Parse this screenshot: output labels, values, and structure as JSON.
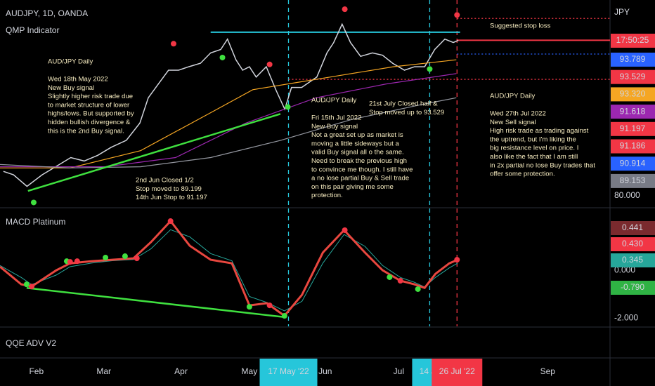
{
  "chart_data": {
    "type": "line",
    "title": "AUDJPY, 1D, OANDA",
    "indicator": "QMP Indicator",
    "currency": "JPY",
    "countdown": "17:50:25",
    "xlim": [
      0,
      181
    ],
    "xticks": [
      {
        "value": 10.8,
        "label": "Feb"
      },
      {
        "value": 30.8,
        "label": "Mar"
      },
      {
        "value": 53.7,
        "label": "Apr"
      },
      {
        "value": 74,
        "label": "May"
      },
      {
        "value": 96.5,
        "label": "Jun"
      },
      {
        "value": 118.3,
        "label": "Jul"
      },
      {
        "value": 162.5,
        "label": "Sep"
      }
    ],
    "highlights": [
      {
        "value": 85.6,
        "label": "17 May '22",
        "color": "#26c6da"
      },
      {
        "value": 127.5,
        "label": "14 Ju",
        "color": "#26c6da"
      },
      {
        "value": 135.6,
        "label": "26 Jul '22",
        "color": "#f23645"
      }
    ],
    "ylim": [
      79,
      97
    ],
    "yticks": [
      {
        "value": 80,
        "label": "80.000"
      }
    ],
    "price_labels": [
      {
        "label": "93.789",
        "color": "#2962ff",
        "text": "#ffffff"
      },
      {
        "label": "93.529",
        "color": "#f23645",
        "text": "#ffffff"
      },
      {
        "label": "93.320",
        "color": "#f5a623",
        "text": "#131722"
      },
      {
        "label": "91.618",
        "color": "#9c27b0",
        "text": "#ffffff"
      },
      {
        "label": "91.197",
        "color": "#f23645",
        "text": "#ffffff"
      },
      {
        "label": "91.186",
        "color": "#f23645",
        "text": "#ffffff"
      },
      {
        "label": "90.914",
        "color": "#2962ff",
        "text": "#ffffff"
      },
      {
        "label": "89.153",
        "color": "#787b86",
        "text": "#ffffff"
      }
    ],
    "series": [
      {
        "color": "#d1d4dc",
        "x": [
          1,
          4,
          8,
          12.5,
          16.5,
          21,
          25,
          29,
          33,
          37.5,
          41.5,
          44,
          47,
          50,
          53,
          56,
          59.5,
          62.5,
          65.5,
          67.5,
          70,
          72,
          74,
          76,
          79,
          82,
          84.5,
          86.5,
          89.5,
          94,
          97,
          99,
          101.5,
          104,
          107,
          110.5,
          113.5,
          116.5,
          120,
          123,
          126,
          129,
          132,
          134.5,
          136
        ],
        "values": [
          82.1,
          81.8,
          80.8,
          81.8,
          82.5,
          83.3,
          83.0,
          83.5,
          84.2,
          84.8,
          86.3,
          88.5,
          89.7,
          90.9,
          90.9,
          91.2,
          91.5,
          92.4,
          92.7,
          93.6,
          91.8,
          90.9,
          91.2,
          90.3,
          91.2,
          89.1,
          87.5,
          89.4,
          89.4,
          90.3,
          92.4,
          93.3,
          94.9,
          93.3,
          92.1,
          92.4,
          92.2,
          91.5,
          90.9,
          91.2,
          91.2,
          92.7,
          93.6,
          93.3,
          93.5
        ]
      },
      {
        "color": "#f5a623",
        "x": [
          0,
          20.8,
          41.7,
          62.5,
          75,
          87.5,
          100,
          116.7,
          135.4
        ],
        "values": [
          82.4,
          82.4,
          83.9,
          87.2,
          89.2,
          89.8,
          90.4,
          91.2,
          91.8
        ]
      },
      {
        "color": "#9c27b0",
        "x": [
          0,
          31.3,
          52.1,
          72.9,
          93.8,
          114.6,
          135.4
        ],
        "values": [
          82.5,
          82.5,
          83.3,
          86.3,
          88.5,
          89.7,
          90.6
        ]
      },
      {
        "color": "#9598a1",
        "x": [
          0,
          20.8,
          41.7,
          62.5,
          83.3,
          104.2,
          125,
          135.4
        ],
        "values": [
          82.7,
          82.4,
          82.5,
          83.3,
          84.8,
          86.6,
          87.9,
          88.5
        ]
      }
    ],
    "trendline": {
      "color": "#3fe03f",
      "x": [
        8.3,
        83.2
      ],
      "values": [
        80.4,
        87.1
      ]
    },
    "levels": [
      {
        "value": 94.2,
        "from": 62.5,
        "to": 136.5,
        "color": "#26c6da",
        "style": "solid"
      },
      {
        "value": 93.5,
        "from": 135.6,
        "to": 181,
        "color": "#f23645",
        "style": "solid"
      },
      {
        "value": 95.4,
        "from": 135.6,
        "to": 181,
        "color": "#f23645",
        "style": "dotted"
      },
      {
        "value": 92.3,
        "from": 135.6,
        "to": 181,
        "color": "#2962ff",
        "style": "dotted"
      },
      {
        "value": 90.1,
        "from": 85.6,
        "to": 181,
        "color": "#f23645",
        "style": "dotted"
      }
    ],
    "vlines": [
      {
        "value": 85.6,
        "color": "#26c6da"
      },
      {
        "value": 127.5,
        "color": "#26c6da"
      },
      {
        "value": 135.6,
        "color": "#f23645"
      }
    ],
    "buy_signals": {
      "color": "#3fe03f",
      "x": [
        10,
        66,
        85.4,
        127.5
      ],
      "values": [
        79.4,
        92.0,
        87.7,
        91.0
      ]
    },
    "sell_signals": {
      "color": "#f23645",
      "x": [
        51.5,
        80,
        102.3,
        135.6
      ],
      "values": [
        93.2,
        91.4,
        96.2,
        95.7
      ]
    },
    "annotations": [
      {
        "heading": "AUD/JPY Daily",
        "lines": [
          "Wed 18th May 2022",
          "New Buy signal",
          "Slightly higher risk trade due",
          "to market structure of lower",
          "highs/lows. But supported by",
          "hidden bullish divergence &",
          "this is the 2nd Buy signal."
        ]
      },
      {
        "lines": [
          "2nd Jun Closed 1/2",
          "Stop moved to 89.199",
          "14th Jun Stop to 91.197"
        ]
      },
      {
        "heading": "AUD/JPY Daily",
        "lines": [
          "Fri 15th Jul 2022",
          "New Buy signal",
          "Not a great set up as market is",
          "moving a little sideways but a",
          "valid Buy signal all o the same.",
          "Need to break the previous high",
          "to convince me though. I still have",
          "a no lose partial Buy & Sell trade",
          "on this pair giving me some",
          "protection."
        ]
      },
      {
        "lines": [
          "21st July Closed half &",
          "Stop moved up to 93.529"
        ]
      },
      {
        "heading": "AUD/JPY Daily",
        "lines": [
          "Wed 27th Jul 2022",
          "New Sell signal",
          "High risk trade as trading against",
          "the uptrend, but I'm liking the",
          "big resistance level on price. I",
          "also like the fact that I am still",
          "in 2x partial no lose Buy trades that",
          "offer some protection."
        ]
      },
      {
        "lines": [
          "Suggested stop loss"
        ]
      }
    ],
    "macd": {
      "title": "MACD Platinum",
      "ylim": [
        -2.35,
        2.59
      ],
      "yticks": [
        {
          "value": 0,
          "label": "0.000"
        },
        {
          "value": -2,
          "label": "-2.000"
        }
      ],
      "labels": [
        {
          "label": "0.441",
          "color": "#7a2a2e"
        },
        {
          "label": "0.430",
          "color": "#f23645"
        },
        {
          "label": "0.345",
          "color": "#26a69a"
        },
        {
          "label": "-0.790",
          "color": "#2fb344"
        }
      ],
      "series": [
        {
          "color": "#26a69a",
          "x": [
            0,
            6.3,
            9.4,
            16.7,
            20.8,
            27.1,
            33.3,
            39.6,
            44.8,
            50.6,
            56.3,
            62.5,
            68.8,
            74,
            79.2,
            84.4,
            89.6,
            95.8,
            102.1,
            108.3,
            113.5,
            118.8,
            122.9,
            126,
            129.2,
            133.3,
            135.8
          ],
          "values": [
            0.2,
            -0.3,
            -0.6,
            -0.2,
            0.15,
            0.3,
            0.4,
            0.45,
            0.9,
            1.7,
            1.4,
            0.7,
            0.4,
            -1.1,
            -1.35,
            -1.7,
            -1.3,
            0.3,
            1.5,
            1.0,
            0.2,
            -0.3,
            -0.5,
            -0.7,
            -0.3,
            0.1,
            0.3
          ]
        },
        {
          "color": "#e8473f",
          "x": [
            0,
            6.3,
            9.4,
            16.7,
            20.8,
            27.1,
            33.3,
            39.6,
            44.8,
            50.6,
            56.3,
            62.5,
            68.8,
            74,
            79.2,
            84.4,
            89.6,
            95.8,
            102.1,
            108.3,
            113.5,
            118.8,
            122.9,
            126,
            129.2,
            133.3,
            135.8
          ],
          "values": [
            0.15,
            -0.59,
            -0.68,
            0,
            0.29,
            0.38,
            0.44,
            0.5,
            1.18,
            2.06,
            1.03,
            0.44,
            0.29,
            -1.47,
            -1.38,
            -1.91,
            -1.03,
            0.74,
            1.68,
            0.74,
            0,
            -0.44,
            -0.59,
            -0.74,
            -0.15,
            0.29,
            0.44
          ]
        }
      ],
      "trendline": {
        "color": "#3fe03f",
        "x": [
          7.9,
          85
        ],
        "values": [
          -0.74,
          -1.97
        ]
      },
      "buy_signals": {
        "color": "#3fe03f",
        "x": [
          7.9,
          19.8,
          31.3,
          37.1,
          74,
          84.4,
          115.6,
          124
        ],
        "values": [
          -0.59,
          0.38,
          0.53,
          0.59,
          -1.53,
          -1.91,
          -0.29,
          -0.79
        ]
      },
      "sell_signals": {
        "color": "#f23645",
        "x": [
          9.4,
          20.8,
          22.9,
          40.6,
          50.6,
          80,
          102.3,
          118.8,
          135.6
        ],
        "values": [
          -0.68,
          0.35,
          0.38,
          0.5,
          2.06,
          -1.47,
          1.68,
          -0.44,
          0.44
        ]
      },
      "vlines": [
        {
          "value": 85.6,
          "color": "#26c6da"
        },
        {
          "value": 127.5,
          "color": "#26c6da"
        },
        {
          "value": 135.6,
          "color": "#f23645"
        }
      ]
    },
    "qqe": {
      "title": "QQE ADV V2"
    }
  }
}
